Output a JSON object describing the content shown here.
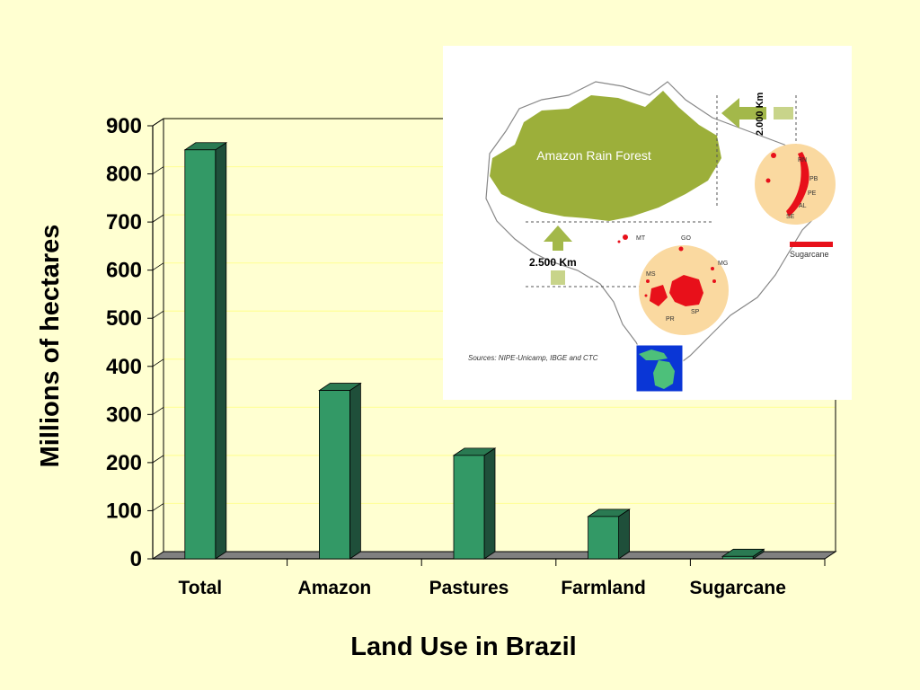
{
  "chart_data": {
    "type": "bar",
    "categories": [
      "Total",
      "Amazon",
      "Pastures",
      "Farmland",
      "Sugarcane"
    ],
    "values": [
      850,
      350,
      215,
      88,
      5
    ],
    "xlabel": "Land Use in Brazil",
    "ylabel": "Millions of hectares",
    "ylim": [
      0,
      900
    ],
    "yticks": [
      0,
      100,
      200,
      300,
      400,
      500,
      600,
      700,
      800,
      900
    ],
    "grid": true,
    "style": "3d",
    "colors": {
      "bar_front": "#339966",
      "bar_side": "#1F4F3A",
      "bar_top": "#2A7A52",
      "floor": "#808080",
      "gridline": "#FFFF99",
      "background": "#FFFFD1"
    }
  },
  "map": {
    "region_label": "Amazon Rain Forest",
    "distance_top": "2.000 Km",
    "distance_left": "2.500 Km",
    "legend_label": "Sugarcane",
    "sources": "Sources: NIPE-Unicamp, IBGE and CTC",
    "state_labels": [
      "RN",
      "PB",
      "PE",
      "AL",
      "SE",
      "MT",
      "GO",
      "MG",
      "MS",
      "SP",
      "PR"
    ],
    "colors": {
      "forest": "#9CAF3A",
      "circle": "#FAD9A0",
      "sugarcane": "#E8101A",
      "arrow": "#A3B84A",
      "inset_bg": "#0A36D6",
      "inset_land": "#4DC07A"
    }
  }
}
